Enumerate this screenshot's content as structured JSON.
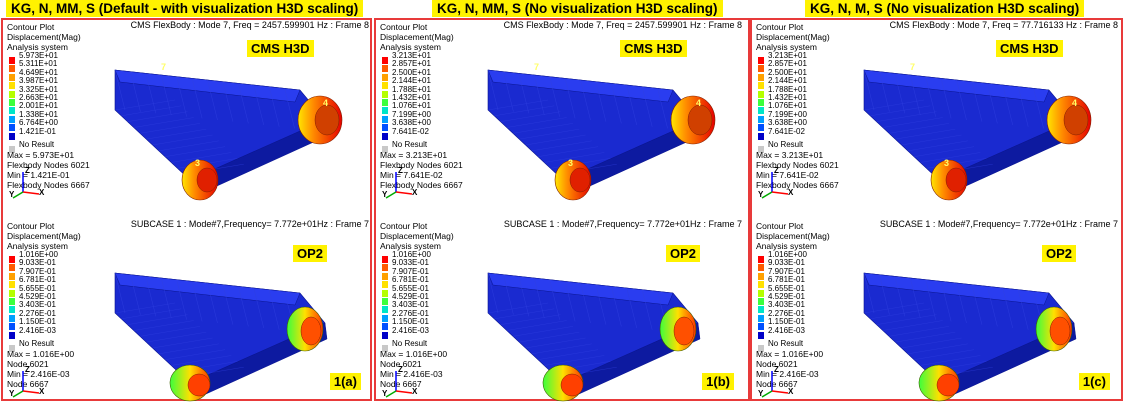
{
  "columns": [
    {
      "title": "KG, N, MM, S (Default - with visualization H3D scaling)",
      "case_label": "1(a)",
      "top": {
        "header": "CMS FlexBody : Mode 7, Freq = 2457.599901 Hz : Frame 8",
        "tag": "CMS H3D",
        "legend_title": [
          "Contour Plot",
          "Displacement(Mag)",
          "Analysis system"
        ],
        "legend_values": [
          "5.973E+01",
          "5.311E+01",
          "4.649E+01",
          "3.987E+01",
          "3.325E+01",
          "2.663E+01",
          "2.001E+01",
          "1.338E+01",
          "6.764E+00",
          "1.421E-01"
        ],
        "no_result": "No Result",
        "max_line": "Max = 5.973E+01",
        "node_line": "Flexbody Nodes 6021",
        "min_line": "Min = 1.421E-01",
        "min_node_line": "Flexbody Nodes 6667",
        "labels": [
          "7",
          "3",
          "4"
        ]
      },
      "bottom": {
        "header": "SUBCASE 1 : Mode#7,Frequency=  7.772e+01Hz : Frame 7",
        "tag": "OP2",
        "legend_title": [
          "Contour Plot",
          "Displacement(Mag)",
          "Analysis system"
        ],
        "legend_values": [
          "1.016E+00",
          "9.033E-01",
          "7.907E-01",
          "6.781E-01",
          "5.655E-01",
          "4.529E-01",
          "3.403E-01",
          "2.276E-01",
          "1.150E-01",
          "2.416E-03"
        ],
        "no_result": "No Result",
        "max_line": "Max = 1.016E+00",
        "node_line": "Node 6021",
        "min_line": "Min = 2.416E-03",
        "min_node_line": "Node 6667"
      }
    },
    {
      "title": "KG, N, MM, S (No visualization H3D scaling)",
      "case_label": "1(b)",
      "top": {
        "header": "CMS FlexBody : Mode 7, Freq = 2457.599901 Hz : Frame 8",
        "tag": "CMS H3D",
        "legend_title": [
          "Contour Plot",
          "Displacement(Mag)",
          "Analysis system"
        ],
        "legend_values": [
          "3.213E+01",
          "2.857E+01",
          "2.500E+01",
          "2.144E+01",
          "1.788E+01",
          "1.432E+01",
          "1.076E+01",
          "7.199E+00",
          "3.638E+00",
          "7.641E-02"
        ],
        "no_result": "No Result",
        "max_line": "Max = 3.213E+01",
        "node_line": "Flexbody Nodes 6021",
        "min_line": "Min = 7.641E-02",
        "min_node_line": "Flexbody Nodes 6667",
        "labels": [
          "7",
          "3",
          "4"
        ]
      },
      "bottom": {
        "header": "SUBCASE 1 : Mode#7,Frequency=  7.772e+01Hz : Frame 7",
        "tag": "OP2",
        "legend_title": [
          "Contour Plot",
          "Displacement(Mag)",
          "Analysis system"
        ],
        "legend_values": [
          "1.016E+00",
          "9.033E-01",
          "7.907E-01",
          "6.781E-01",
          "5.655E-01",
          "4.529E-01",
          "3.403E-01",
          "2.276E-01",
          "1.150E-01",
          "2.416E-03"
        ],
        "no_result": "No Result",
        "max_line": "Max = 1.016E+00",
        "node_line": "Node 6021",
        "min_line": "Min = 2.416E-03",
        "min_node_line": "Node 6667"
      }
    },
    {
      "title": "KG, N, M, S (No visualization H3D scaling)",
      "case_label": "1(c)",
      "top": {
        "header": "CMS FlexBody : Mode 7, Freq = 77.716133 Hz : Frame 8",
        "tag": "CMS H3D",
        "legend_title": [
          "Contour Plot",
          "Displacement(Mag)",
          "Analysis system"
        ],
        "legend_values": [
          "3.213E+01",
          "2.857E+01",
          "2.500E+01",
          "2.144E+01",
          "1.788E+01",
          "1.432E+01",
          "1.076E+01",
          "7.199E+00",
          "3.638E+00",
          "7.641E-02"
        ],
        "no_result": "No Result",
        "max_line": "Max = 3.213E+01",
        "node_line": "Flexbody Nodes 6021",
        "min_line": "Min = 7.641E-02",
        "min_node_line": "Flexbody Nodes 6667",
        "labels": [
          "7",
          "3",
          "4"
        ]
      },
      "bottom": {
        "header": "SUBCASE 1 : Mode#7,Frequency=  7.772e+01Hz : Frame 7",
        "tag": "OP2",
        "legend_title": [
          "Contour Plot",
          "Displacement(Mag)",
          "Analysis system"
        ],
        "legend_values": [
          "1.016E+00",
          "9.033E-01",
          "7.907E-01",
          "6.781E-01",
          "5.655E-01",
          "4.529E-01",
          "3.403E-01",
          "2.276E-01",
          "1.150E-01",
          "2.416E-03"
        ],
        "no_result": "No Result",
        "max_line": "Max = 1.016E+00",
        "node_line": "Node 6021",
        "min_line": "Min = 2.416E-03",
        "min_node_line": "Node 6667"
      }
    }
  ],
  "colors": {
    "legend_scale": [
      "#ff0000",
      "#ff5a00",
      "#ffa000",
      "#ffe100",
      "#b4ff00",
      "#3cff3c",
      "#00e6c8",
      "#00a0ff",
      "#0050ff",
      "#0000c8"
    ],
    "no_result": "#c8c8c8",
    "frame_border": "#e83a3a",
    "title_bg": "#fff200",
    "model_blue": "#1a2ad0"
  },
  "axes": {
    "x": "X",
    "y": "Y",
    "z": "Z"
  }
}
